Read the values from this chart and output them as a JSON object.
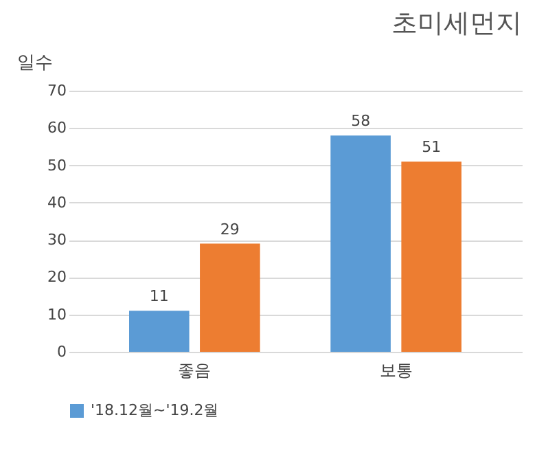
{
  "chart_data": {
    "type": "bar",
    "title": "초미세먼지",
    "ylabel": "일수",
    "categories": [
      "좋음",
      "보통"
    ],
    "series": [
      {
        "name": "'18.12월~'19.2월",
        "color": "#5b9bd5",
        "values": [
          11,
          58
        ]
      },
      {
        "color": "#ed7d31",
        "values": [
          29,
          51
        ]
      }
    ],
    "ylim": [
      0,
      70
    ],
    "yticks": [
      0,
      10,
      20,
      30,
      40,
      50,
      60,
      70
    ],
    "grid": "y",
    "data_labels": true,
    "legend": "bottom"
  }
}
